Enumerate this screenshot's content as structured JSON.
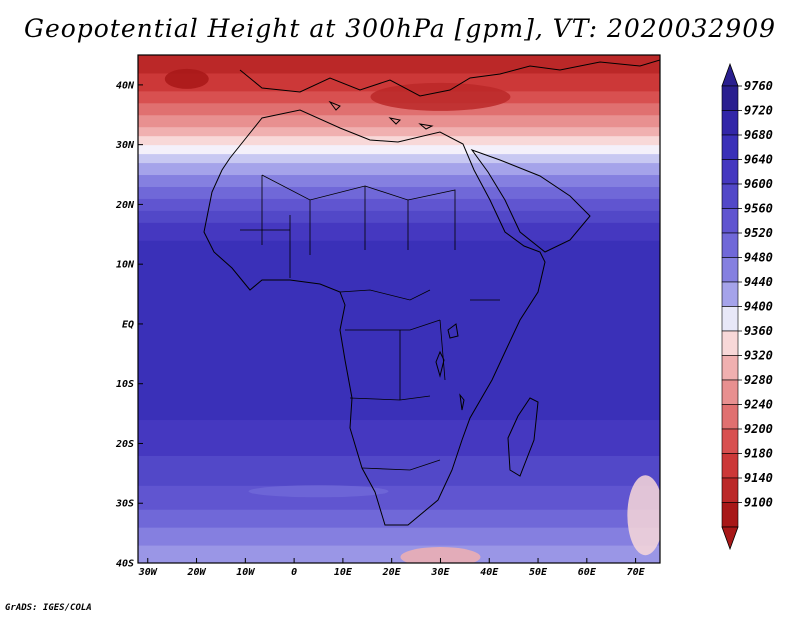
{
  "title": "Geopotential Height at 300hPa [gpm], VT: 2020032909",
  "credit": "GrADS: IGES/COLA",
  "lat_labels": [
    "40N",
    "30N",
    "20N",
    "10N",
    "EQ",
    "10S",
    "20S",
    "30S",
    "40S"
  ],
  "lon_labels": [
    "30W",
    "20W",
    "10W",
    "0",
    "10E",
    "20E",
    "30E",
    "40E",
    "50E",
    "60E",
    "70E"
  ],
  "colorbar": {
    "levels": [
      9760,
      9720,
      9680,
      9640,
      9600,
      9560,
      9520,
      9480,
      9440,
      9400,
      9360,
      9320,
      9280,
      9240,
      9200,
      9180,
      9140,
      9100
    ],
    "colors": [
      "#2a1f8f",
      "#3226a8",
      "#3a30b8",
      "#4538c0",
      "#5248c8",
      "#6055d0",
      "#7068d8",
      "#8580e0",
      "#a5a3ea",
      "#e8e8f8",
      "#f8d8d8",
      "#f0b0b0",
      "#e89090",
      "#e07070",
      "#d85050",
      "#cc3838",
      "#bb2828",
      "#a81818"
    ],
    "top_color": "#2a1f8f",
    "bottom_color": "#a81818"
  },
  "field_bands": [
    {
      "lat": -40,
      "color": "#9a96e6"
    },
    {
      "lat": -37,
      "color": "#857fe0"
    },
    {
      "lat": -34,
      "color": "#7068d8"
    },
    {
      "lat": -31,
      "color": "#6055d0"
    },
    {
      "lat": -27,
      "color": "#5248c8"
    },
    {
      "lat": -22,
      "color": "#4538c0"
    },
    {
      "lat": -16,
      "color": "#3a30b8"
    },
    {
      "lat": 14,
      "color": "#4538c0"
    },
    {
      "lat": 17,
      "color": "#5248c8"
    },
    {
      "lat": 19,
      "color": "#6055d0"
    },
    {
      "lat": 21,
      "color": "#7068d8"
    },
    {
      "lat": 23,
      "color": "#8580e0"
    },
    {
      "lat": 25,
      "color": "#a5a3ea"
    },
    {
      "lat": 27,
      "color": "#c8c8f2"
    },
    {
      "lat": 28.5,
      "color": "#f4f0fa"
    },
    {
      "lat": 30,
      "color": "#f8d8d8"
    },
    {
      "lat": 31.5,
      "color": "#f0b0b0"
    },
    {
      "lat": 33,
      "color": "#e89090"
    },
    {
      "lat": 35,
      "color": "#e07070"
    },
    {
      "lat": 37,
      "color": "#d85050"
    },
    {
      "lat": 39,
      "color": "#cc3838"
    },
    {
      "lat": 42,
      "color": "#bb2828"
    }
  ]
}
